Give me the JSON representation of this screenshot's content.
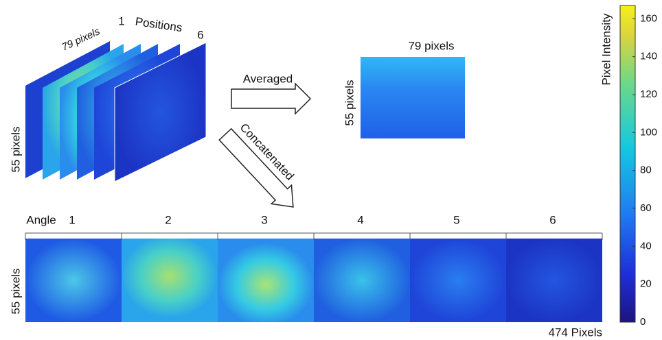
{
  "stack": {
    "width_label": "79 pixels",
    "height_label": "55 pixels",
    "first_label": "1",
    "positions_label": "Positions",
    "last_label": "6"
  },
  "averaged": {
    "arrow_label": "Averaged",
    "width_label": "79 pixels",
    "height_label": "55 pixels"
  },
  "concatenated": {
    "arrow_label": "Concatenated"
  },
  "strip": {
    "axis_label": "Angle",
    "angles": [
      "1",
      "2",
      "3",
      "4",
      "5",
      "6"
    ],
    "height_label": "55 pixels",
    "width_label": "474 Pixels"
  },
  "colorbar": {
    "label": "Pixel Intensity",
    "lim": [
      0,
      167
    ],
    "ticks": [
      0,
      20,
      40,
      60,
      80,
      100,
      120,
      140,
      160
    ]
  }
}
